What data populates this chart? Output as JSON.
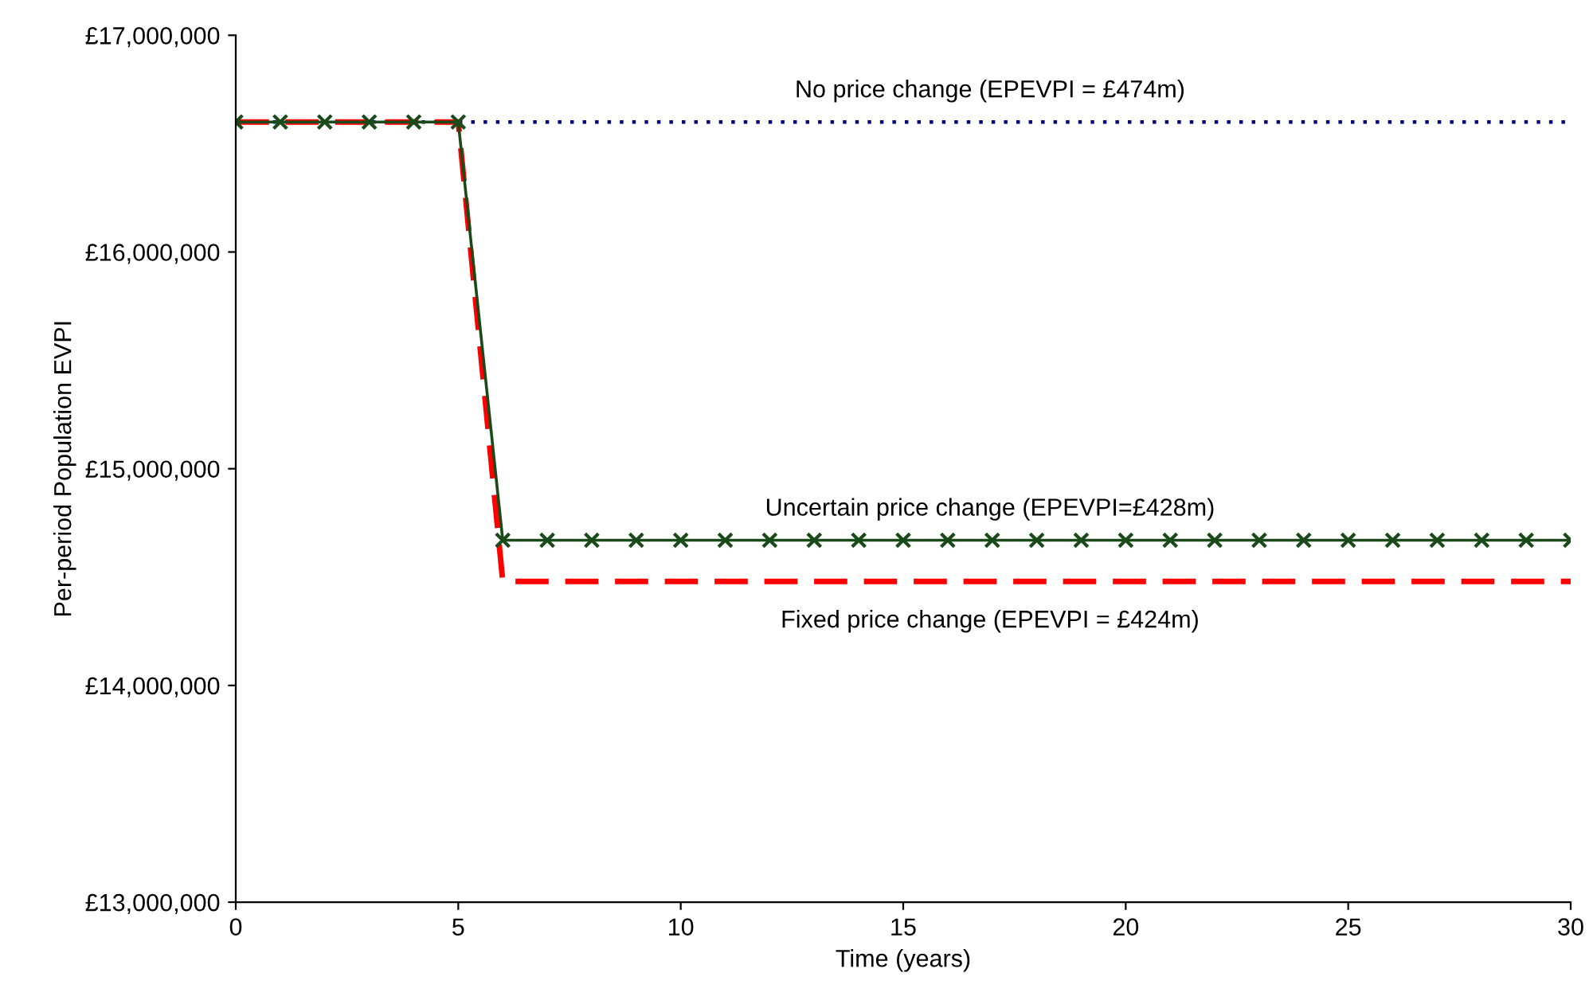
{
  "chart_data": {
    "type": "line",
    "xlabel": "Time (years)",
    "ylabel": "Per-period Population EVPI",
    "x": [
      0,
      1,
      2,
      3,
      4,
      5,
      6,
      7,
      8,
      9,
      10,
      11,
      12,
      13,
      14,
      15,
      16,
      17,
      18,
      19,
      20,
      21,
      22,
      23,
      24,
      25,
      26,
      27,
      28,
      29,
      30
    ],
    "series": [
      {
        "color": "#000080",
        "line_style": "dotted",
        "marker": "none",
        "values": [
          16600000,
          16600000,
          16600000,
          16600000,
          16600000,
          16600000,
          16600000,
          16600000,
          16600000,
          16600000,
          16600000,
          16600000,
          16600000,
          16600000,
          16600000,
          16600000,
          16600000,
          16600000,
          16600000,
          16600000,
          16600000,
          16600000,
          16600000,
          16600000,
          16600000,
          16600000,
          16600000,
          16600000,
          16600000,
          16600000,
          16600000
        ]
      },
      {
        "color": "#ff0000",
        "line_style": "dashed",
        "marker": "none",
        "values": [
          16600000,
          16600000,
          16600000,
          16600000,
          16600000,
          16600000,
          14480000,
          14480000,
          14480000,
          14480000,
          14480000,
          14480000,
          14480000,
          14480000,
          14480000,
          14480000,
          14480000,
          14480000,
          14480000,
          14480000,
          14480000,
          14480000,
          14480000,
          14480000,
          14480000,
          14480000,
          14480000,
          14480000,
          14480000,
          14480000,
          14480000
        ]
      },
      {
        "color": "#1a4a1a",
        "line_style": "solid",
        "marker": "cross",
        "values": [
          16600000,
          16600000,
          16600000,
          16600000,
          16600000,
          16600000,
          14670000,
          14670000,
          14670000,
          14670000,
          14670000,
          14670000,
          14670000,
          14670000,
          14670000,
          14670000,
          14670000,
          14670000,
          14670000,
          14670000,
          14670000,
          14670000,
          14670000,
          14670000,
          14670000,
          14670000,
          14670000,
          14670000,
          14670000,
          14670000,
          14670000
        ]
      }
    ],
    "annotations": [
      {
        "text": "No price change (EPEVPI = £474m)",
        "y": 16600000
      },
      {
        "text": "Uncertain price change (EPEVPI=£428m)",
        "y": 14670000
      },
      {
        "text": "Fixed price change (EPEVPI = £424m)",
        "y": 14480000
      }
    ],
    "xlim": [
      0,
      30
    ],
    "xticks": [
      0,
      5,
      10,
      15,
      20,
      25,
      30
    ],
    "ylim": [
      13000000,
      17000000
    ],
    "yticks": [
      {
        "value": 13000000,
        "label": "£13,000,000"
      },
      {
        "value": 14000000,
        "label": "£14,000,000"
      },
      {
        "value": 15000000,
        "label": "£15,000,000"
      },
      {
        "value": 16000000,
        "label": "£16,000,000"
      },
      {
        "value": 17000000,
        "label": "£17,000,000"
      }
    ],
    "grid": false,
    "legend": false
  }
}
